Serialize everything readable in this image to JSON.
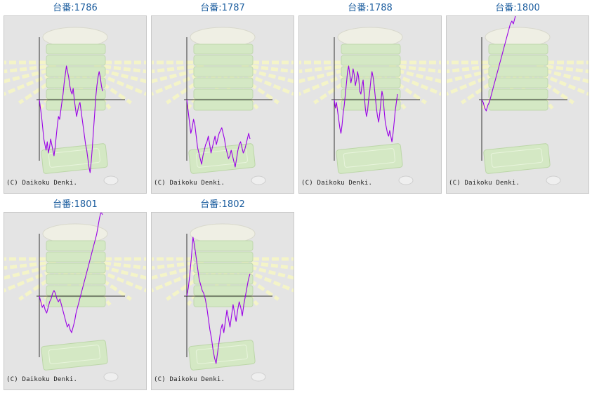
{
  "copyright": "(C) Daikoku Denki.",
  "colors": {
    "line": "#9a00e6",
    "axis": "#333333",
    "title": "#1a5c9e",
    "background": "#e4e4e4"
  },
  "chart_data": [
    {
      "type": "line",
      "title": "台番:1786",
      "y": [
        0,
        -3,
        -6,
        -10,
        -14,
        -16,
        -18,
        -15,
        -19,
        -17,
        -14,
        -16,
        -18,
        -20,
        -17,
        -13,
        -9,
        -6,
        -7,
        -4,
        -1,
        2,
        6,
        9,
        12,
        10,
        8,
        5,
        3,
        2,
        4,
        0,
        -3,
        -6,
        -4,
        -2,
        -1,
        -4,
        -7,
        -10,
        -13,
        -16,
        -18,
        -21,
        -24,
        -26,
        -22,
        -17,
        -11,
        -5,
        1,
        5,
        8,
        10,
        8,
        5,
        3
      ]
    },
    {
      "type": "line",
      "title": "台番:1787",
      "y": [
        0,
        -4,
        -8,
        -12,
        -10,
        -7,
        -9,
        -13,
        -17,
        -19,
        -21,
        -23,
        -20,
        -18,
        -16,
        -15,
        -13,
        -16,
        -19,
        -17,
        -15,
        -13,
        -16,
        -14,
        -12,
        -11,
        -10,
        -12,
        -14,
        -17,
        -19,
        -21,
        -20,
        -18,
        -20,
        -22,
        -24,
        -21,
        -18,
        -16,
        -15,
        -17,
        -19,
        -18,
        -16,
        -14,
        -12,
        -14
      ]
    },
    {
      "type": "line",
      "title": "台番:1788",
      "y": [
        0,
        -3,
        -1,
        -4,
        -7,
        -10,
        -12,
        -9,
        -5,
        -2,
        2,
        6,
        10,
        12,
        9,
        6,
        8,
        11,
        9,
        5,
        7,
        10,
        8,
        3,
        2,
        5,
        7,
        2,
        -3,
        -6,
        -4,
        0,
        3,
        7,
        10,
        8,
        5,
        1,
        -3,
        -6,
        -8,
        -5,
        -1,
        3,
        1,
        -4,
        -8,
        -10,
        -12,
        -13,
        -11,
        -13,
        -15,
        -12,
        -8,
        -4,
        -1,
        2
      ]
    },
    {
      "type": "line",
      "title": "台番:1800",
      "y": [
        0,
        -1,
        -3,
        -4,
        -2,
        -1,
        1,
        3,
        5,
        7,
        9,
        11,
        13,
        15,
        17,
        19,
        21,
        23,
        25,
        27,
        28,
        27,
        29,
        31,
        32,
        33,
        35,
        36,
        38,
        39,
        41,
        42,
        43,
        44,
        46,
        47,
        48,
        46,
        45,
        47,
        48,
        47,
        46
      ]
    },
    {
      "type": "line",
      "title": "台番:1801",
      "y": [
        0,
        -2,
        -4,
        -3,
        -5,
        -6,
        -4,
        -2,
        -1,
        1,
        2,
        1,
        -1,
        -2,
        -1,
        -3,
        -5,
        -7,
        -9,
        -11,
        -10,
        -12,
        -13,
        -11,
        -9,
        -6,
        -4,
        -2,
        0,
        2,
        4,
        6,
        8,
        10,
        12,
        14,
        16,
        18,
        20,
        22,
        25,
        28,
        30,
        29
      ]
    },
    {
      "type": "line",
      "title": "台番:1802",
      "y": [
        0,
        3,
        8,
        14,
        21,
        18,
        14,
        10,
        6,
        4,
        2,
        1,
        -1,
        -4,
        -8,
        -12,
        -15,
        -19,
        -22,
        -24,
        -20,
        -16,
        -12,
        -10,
        -13,
        -9,
        -5,
        -8,
        -11,
        -7,
        -3,
        -6,
        -9,
        -5,
        -2,
        -4,
        -7,
        -3,
        0,
        3,
        6,
        8
      ]
    }
  ]
}
